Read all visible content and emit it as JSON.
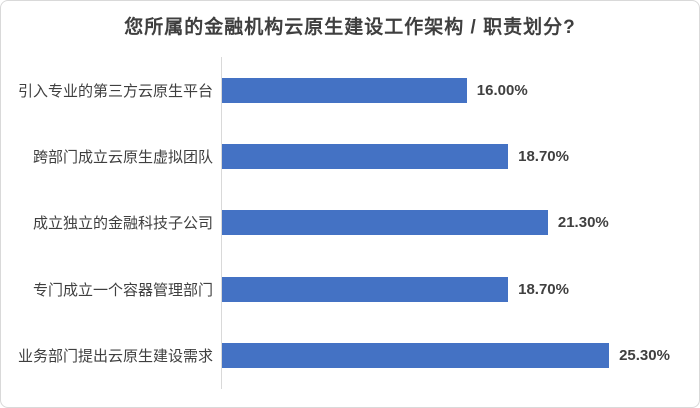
{
  "chart_data": {
    "type": "bar",
    "orientation": "horizontal",
    "title": "您所属的金融机构云原生建设工作架构 / 职责划分?",
    "categories": [
      "引入专业的第三方云原生平台",
      "跨部门成立云原生虚拟团队",
      "成立独立的金融科技子公司",
      "专门成立一个容器管理部门",
      "业务部门提出云原生建设需求"
    ],
    "values": [
      16.0,
      18.7,
      21.3,
      18.7,
      25.3
    ],
    "value_labels": [
      "16.00%",
      "18.70%",
      "21.30%",
      "18.70%",
      "25.30%"
    ],
    "xlabel": "",
    "ylabel": "",
    "xlim": [
      0,
      30
    ],
    "grid": false,
    "legend": false,
    "bar_color": "#4472C4",
    "axis_line_color": "#D9D9D9",
    "border_color": "#D9D9D9",
    "title_color": "#3F3F3F",
    "label_color": "#3F3F3F",
    "value_color": "#404040"
  }
}
